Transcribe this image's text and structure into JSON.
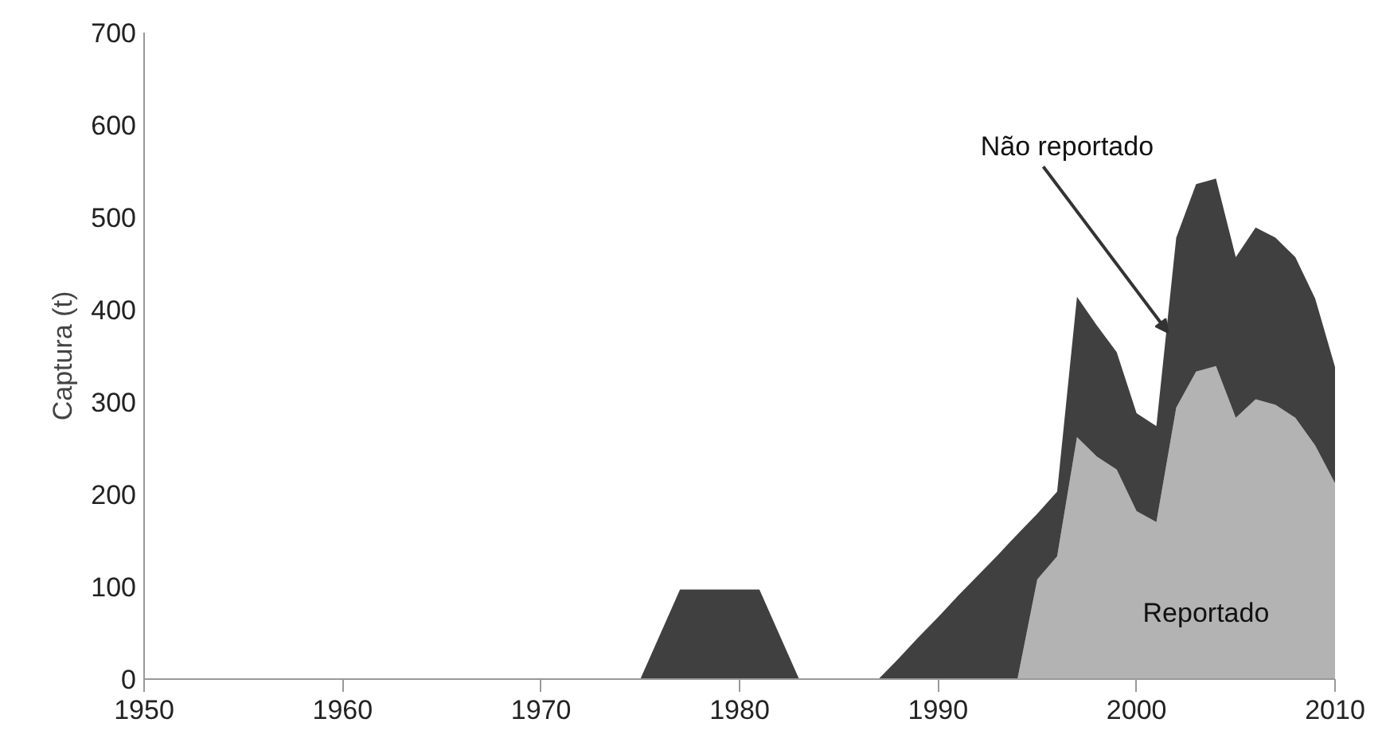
{
  "chart_data": {
    "type": "area",
    "stacked": true,
    "ylabel": "Captura (t)",
    "x": [
      1950,
      1975,
      1977,
      1981,
      1983,
      1987,
      1988,
      1989,
      1990,
      1991,
      1992,
      1993,
      1994,
      1995,
      1996,
      1997,
      1998,
      1999,
      2000,
      2001,
      2002,
      2003,
      2004,
      2005,
      2006,
      2007,
      2008,
      2009,
      2010
    ],
    "series": [
      {
        "name": "Reportado",
        "color": "#b3b3b3",
        "values": [
          0,
          0,
          0,
          0,
          0,
          0,
          0,
          0,
          0,
          0,
          0,
          0,
          0,
          108,
          133,
          262,
          241,
          227,
          182,
          170,
          294,
          333,
          339,
          283,
          303,
          297,
          283,
          253,
          212
        ]
      },
      {
        "name": "Não reportado",
        "color": "#404040",
        "values": [
          0,
          0,
          97,
          97,
          0,
          0,
          22,
          45,
          67,
          90,
          112,
          134,
          157,
          71,
          70,
          152,
          142,
          127,
          106,
          104,
          184,
          203,
          203,
          174,
          186,
          181,
          174,
          159,
          126
        ]
      }
    ],
    "xlim": [
      1950,
      2010
    ],
    "xticks": [
      1950,
      1960,
      1970,
      1980,
      1990,
      2000,
      2010
    ],
    "ylim": [
      0,
      700
    ],
    "yticks": [
      0,
      100,
      200,
      300,
      400,
      500,
      600,
      700
    ],
    "grid": false
  }
}
